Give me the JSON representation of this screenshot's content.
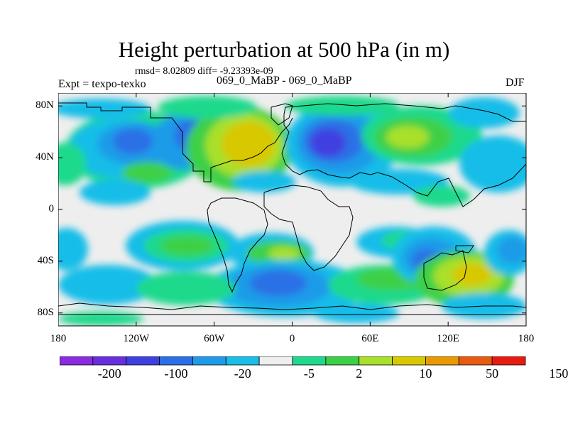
{
  "title": "Height perturbation at 500 hPa (in m)",
  "stats": "rmsd= 8.02809 diff= -9.23393e-09",
  "experiment_label": "Expt = texpo-texko",
  "runs_label": "069_0_MaBP - 069_0_MaBP",
  "season": "DJF",
  "lat_labels": [
    "80N",
    "40N",
    "0",
    "40S",
    "80S"
  ],
  "lon_labels": [
    "180",
    "120W",
    "60W",
    "0",
    "60E",
    "120E",
    "180"
  ],
  "colorbar": {
    "levels": [
      "-200",
      "-100",
      "-20",
      "-5",
      "2",
      "10",
      "50",
      "150"
    ],
    "colors": [
      "#8a2be2",
      "#6a2ee0",
      "#3f3fe0",
      "#2a6fe6",
      "#1e9be8",
      "#19bde8",
      "#eeeeee",
      "#1ed98c",
      "#3cd046",
      "#a8e02a",
      "#d8c800",
      "#e89a00",
      "#e85a10",
      "#e81a10"
    ]
  },
  "chart_data": {
    "type": "heatmap",
    "title": "Height perturbation at 500 hPa (in m)",
    "units": "m",
    "x_range": [
      -180,
      180
    ],
    "y_range": [
      -90,
      90
    ],
    "features": [
      {
        "name": "negative-center",
        "lon": -140,
        "lat": 45,
        "value": -20
      },
      {
        "name": "negative-center",
        "lon": -80,
        "lat": 50,
        "value": -20
      },
      {
        "name": "positive-center",
        "lon": -30,
        "lat": 47,
        "value": 50
      },
      {
        "name": "negative-center",
        "lon": 35,
        "lat": 50,
        "value": -100
      },
      {
        "name": "positive-center",
        "lon": 90,
        "lat": 52,
        "value": 10
      },
      {
        "name": "positive-center",
        "lon": -150,
        "lat": 30,
        "value": 10
      },
      {
        "name": "negative-center",
        "lon": -20,
        "lat": 15,
        "value": -5
      },
      {
        "name": "negative-center",
        "lon": -110,
        "lat": 10,
        "value": -5
      },
      {
        "name": "positive-center",
        "lon": -80,
        "lat": -28,
        "value": 10
      },
      {
        "name": "positive-center",
        "lon": 0,
        "lat": -35,
        "value": 10
      },
      {
        "name": "negative-center",
        "lon": -35,
        "lat": -60,
        "value": -20
      },
      {
        "name": "negative-center",
        "lon": -110,
        "lat": -55,
        "value": -20
      },
      {
        "name": "negative-center",
        "lon": 110,
        "lat": -40,
        "value": -100
      },
      {
        "name": "positive-center",
        "lon": 140,
        "lat": -55,
        "value": 50
      },
      {
        "name": "negative-center",
        "lon": 165,
        "lat": -30,
        "value": -20
      },
      {
        "name": "positive-center",
        "lon": 75,
        "lat": -25,
        "value": 10
      },
      {
        "name": "negative-center",
        "lon": 165,
        "lat": 40,
        "value": -5
      }
    ]
  }
}
